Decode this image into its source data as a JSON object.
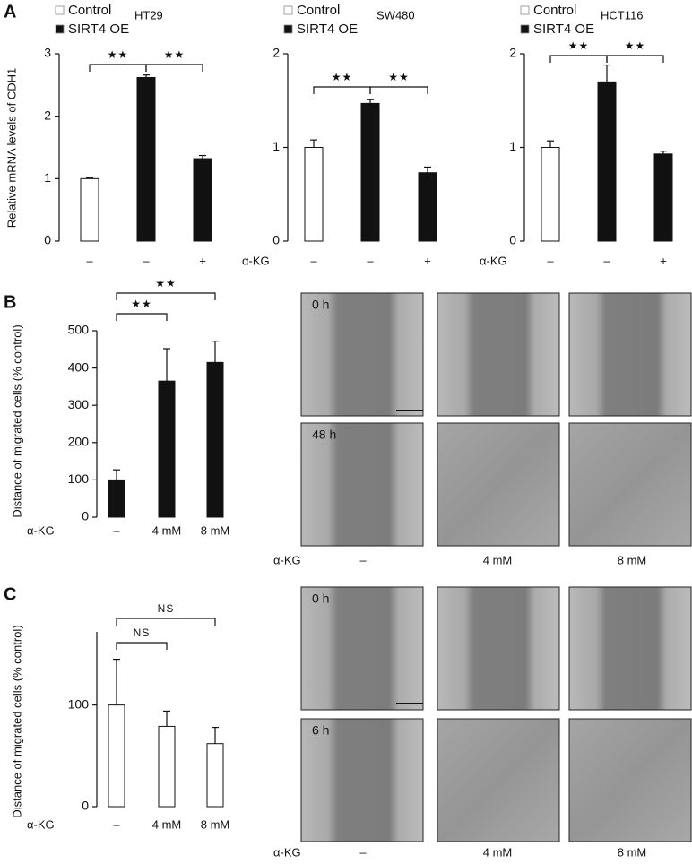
{
  "panels": [
    "A",
    "B",
    "C"
  ],
  "chart_data": [
    {
      "type": "bar",
      "title": "HT29",
      "ylabel": "Relative mRNA levels of CDH1",
      "categories": [
        "–",
        "–",
        "+"
      ],
      "series": [
        {
          "name": "Control",
          "color": "#ffffff",
          "values": [
            1.0,
            null,
            null
          ],
          "errors": [
            0.01,
            null,
            null
          ]
        },
        {
          "name": "SIRT4 OE",
          "color": "#111111",
          "values": [
            null,
            2.62,
            1.32
          ],
          "errors": [
            null,
            0.04,
            0.05
          ]
        }
      ],
      "ylim": [
        0,
        3
      ],
      "yticks": [
        0,
        1,
        2,
        3
      ],
      "annotations": [
        "★★",
        "★★"
      ]
    },
    {
      "type": "bar",
      "title": "SW480",
      "row_label": "α-KG",
      "categories": [
        "–",
        "–",
        "+"
      ],
      "series": [
        {
          "name": "Control",
          "color": "#ffffff",
          "values": [
            1.0,
            null,
            null
          ],
          "errors": [
            0.08,
            null,
            null
          ]
        },
        {
          "name": "SIRT4 OE",
          "color": "#111111",
          "values": [
            null,
            1.47,
            0.73
          ],
          "errors": [
            null,
            0.04,
            0.06
          ]
        }
      ],
      "ylim": [
        0,
        2
      ],
      "yticks": [
        0,
        1,
        2
      ],
      "annotations": [
        "★★",
        "★★"
      ]
    },
    {
      "type": "bar",
      "title": "HCT116",
      "row_label": "α-KG",
      "categories": [
        "–",
        "–",
        "+"
      ],
      "series": [
        {
          "name": "Control",
          "color": "#ffffff",
          "values": [
            1.0,
            null,
            null
          ],
          "errors": [
            0.07,
            null,
            null
          ]
        },
        {
          "name": "SIRT4 OE",
          "color": "#111111",
          "values": [
            null,
            1.7,
            0.93
          ],
          "errors": [
            null,
            0.18,
            0.03
          ]
        }
      ],
      "ylim": [
        0,
        2
      ],
      "yticks": [
        0,
        1,
        2
      ],
      "annotations": [
        "★★",
        "★★"
      ]
    },
    {
      "type": "bar",
      "ylabel": "Distance of migrated cells (% control)",
      "row_label": "α-KG",
      "categories": [
        "–",
        "4 mM",
        "8 mM"
      ],
      "values": [
        100,
        365,
        415
      ],
      "errors": [
        27,
        87,
        57
      ],
      "color": "#111111",
      "ylim": [
        0,
        500
      ],
      "yticks": [
        0,
        100,
        200,
        300,
        400,
        500
      ],
      "annotations": [
        "★★",
        "★★"
      ]
    },
    {
      "type": "bar",
      "ylabel": "Distance of migrated cells (% control)",
      "row_label": "α-KG",
      "categories": [
        "–",
        "4 mM",
        "8 mM"
      ],
      "values": [
        100,
        79,
        62
      ],
      "errors": [
        45,
        15,
        16
      ],
      "color": "#ffffff",
      "ylim": [
        0,
        172
      ],
      "yticks": [
        0,
        100
      ],
      "annotations": [
        "NS",
        "NS"
      ]
    }
  ],
  "image_panels": [
    {
      "row_labels": [
        "0 h",
        "48 h"
      ],
      "column_label": "α-KG",
      "conditions": [
        "–",
        "4 mM",
        "8 mM"
      ]
    },
    {
      "row_labels": [
        "0 h",
        "6 h"
      ],
      "column_label": "α-KG",
      "conditions": [
        "–",
        "4 mM",
        "8 mM"
      ]
    }
  ]
}
